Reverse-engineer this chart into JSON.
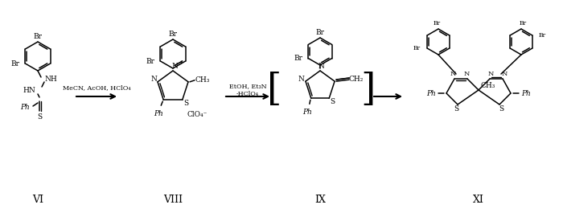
{
  "background_color": "#ffffff",
  "labels": {
    "VI": "VI",
    "VIII": "VIII",
    "IX": "IX",
    "XI": "XI"
  },
  "arrow1_label": "MeCN, AcOH, HClO₄",
  "arrow2_label_top": "EtOH, Et₃N",
  "arrow2_label_bot": "-HClO₄",
  "clo4": "ClO₄⁻",
  "ch3": "CH₃",
  "ch2": "CH₂",
  "ph": "Ph",
  "nh": "NH",
  "hn": "HN",
  "br": "Br",
  "s": "S",
  "n": "N"
}
